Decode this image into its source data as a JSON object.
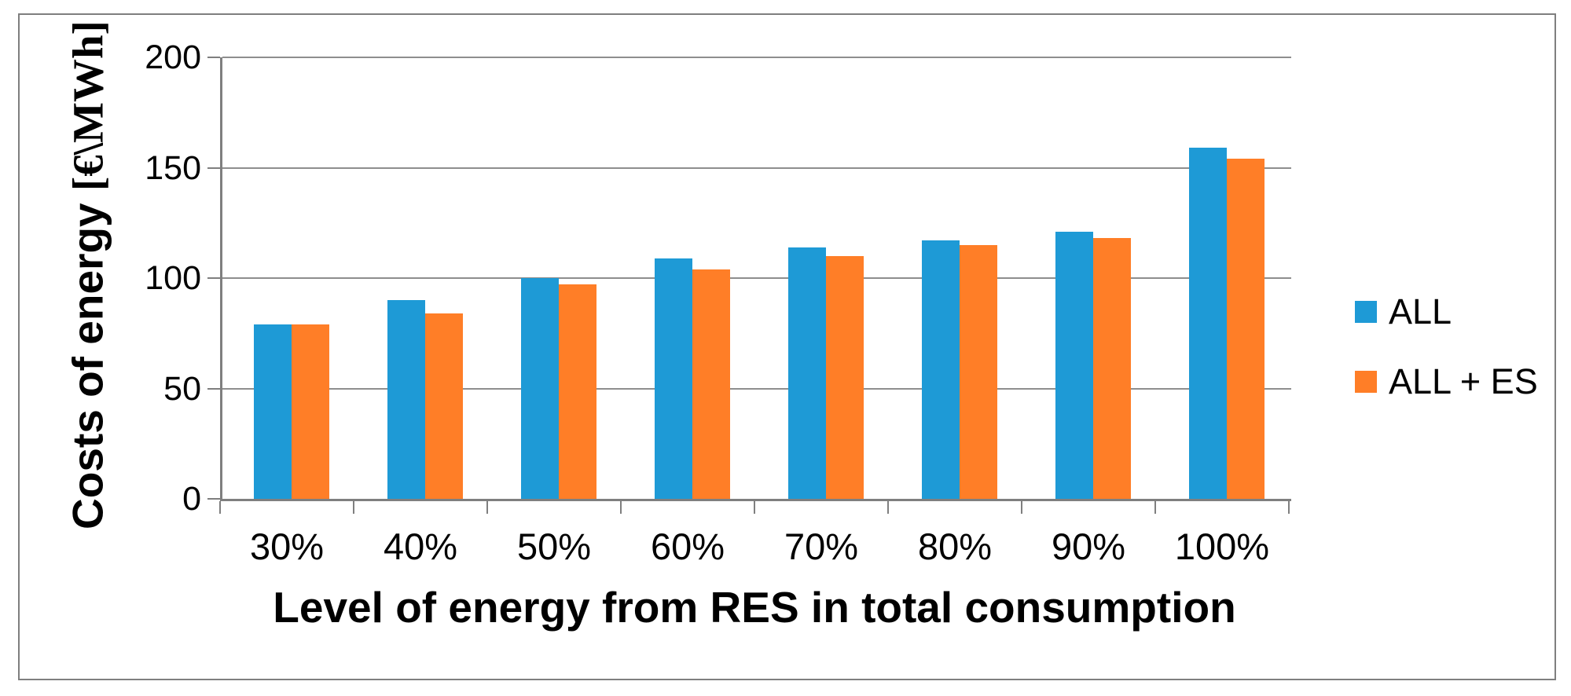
{
  "chart_data": {
    "type": "bar",
    "title": "",
    "xlabel": "Level of energy from RES in total consumption",
    "ylabel_sans": "Costs of energy ",
    "ylabel_serif": "[€\\MWh]",
    "categories": [
      "30%",
      "40%",
      "50%",
      "60%",
      "70%",
      "80%",
      "90%",
      "100%"
    ],
    "series": [
      {
        "name": "ALL",
        "color": "#1E9AD6",
        "values": [
          79,
          90,
          100,
          109,
          114,
          117,
          121,
          159
        ]
      },
      {
        "name": "ALL + ES",
        "color": "#FF7E27",
        "values": [
          79,
          84,
          97,
          104,
          110,
          115,
          118,
          154
        ]
      }
    ],
    "ylim": [
      0,
      200
    ],
    "yticks": [
      0,
      50,
      100,
      150,
      200
    ],
    "grid": true,
    "legend_position": "right"
  },
  "colors": {
    "axis": "#7F7F7F",
    "gridline": "#8E8E8E",
    "frame_border": "#7F7F7F",
    "text": "#000000",
    "background": "#FFFFFF"
  }
}
